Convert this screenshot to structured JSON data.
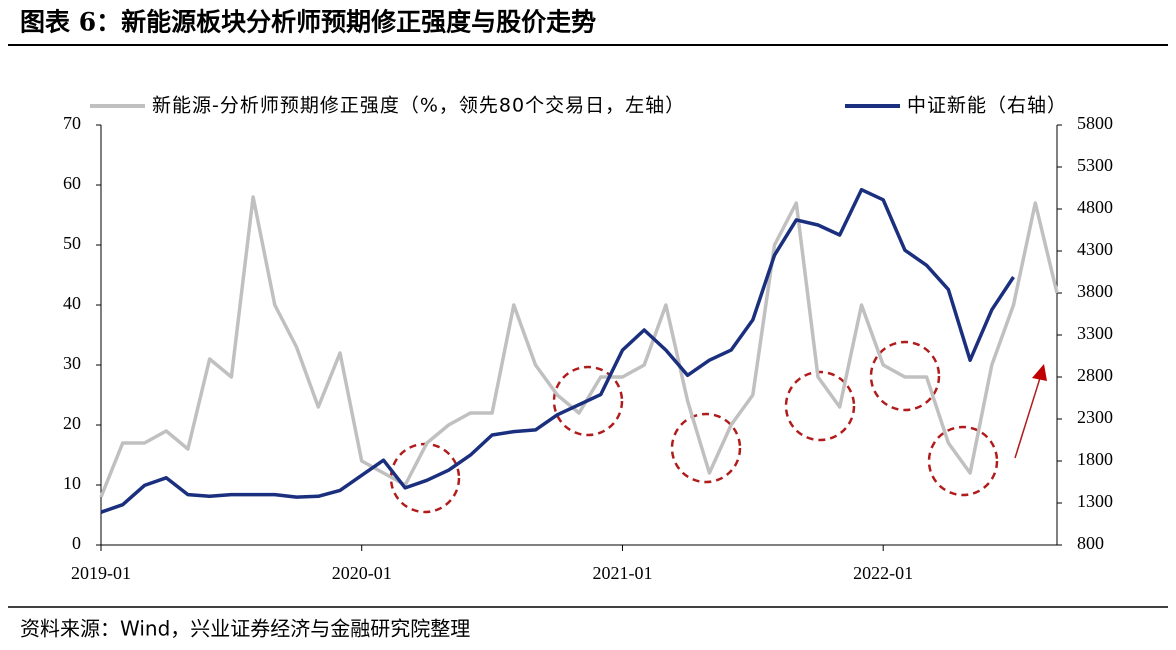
{
  "chart_data": {
    "type": "line",
    "title": "图表 6：新能源板块分析师预期修正强度与股价走势",
    "source": "资料来源：Wind，兴业证券经济与金融研究院整理",
    "x": [
      "2019-01",
      "2019-02",
      "2019-03",
      "2019-04",
      "2019-05",
      "2019-06",
      "2019-07",
      "2019-08",
      "2019-09",
      "2019-10",
      "2019-11",
      "2019-12",
      "2020-01",
      "2020-02",
      "2020-03",
      "2020-04",
      "2020-05",
      "2020-06",
      "2020-07",
      "2020-08",
      "2020-09",
      "2020-10",
      "2020-11",
      "2020-12",
      "2021-01",
      "2021-02",
      "2021-03",
      "2021-04",
      "2021-05",
      "2021-06",
      "2021-07",
      "2021-08",
      "2021-09",
      "2021-10",
      "2021-11",
      "2021-12",
      "2022-01",
      "2022-02",
      "2022-03",
      "2022-04",
      "2022-05",
      "2022-06",
      "2022-07",
      "2022-08",
      "2022-09"
    ],
    "xlim": [
      "2019-01",
      "2022-09"
    ],
    "xticks": [
      "2019-01",
      "2020-01",
      "2021-01",
      "2022-01"
    ],
    "ylim": [
      0,
      70
    ],
    "yticks": [
      0,
      10,
      20,
      30,
      40,
      50,
      60,
      70
    ],
    "y2lim": [
      800,
      5800
    ],
    "y2ticks": [
      800,
      1300,
      1800,
      2300,
      2800,
      3300,
      3800,
      4300,
      4800,
      5300,
      5800
    ],
    "series": [
      {
        "name": "新能源-分析师预期修正强度（%，领先80个交易日，左轴）",
        "color": "#c0c0c0",
        "values": [
          8,
          17,
          17,
          19,
          16,
          31,
          28,
          58,
          40,
          33,
          23,
          32,
          14,
          12,
          10,
          17,
          20,
          22,
          22,
          40,
          30,
          25,
          22,
          28,
          28,
          30,
          40,
          24,
          12,
          20,
          25,
          50,
          57,
          28,
          23,
          40,
          30,
          28,
          28,
          17,
          12,
          30,
          40,
          57,
          42
        ]
      },
      {
        "name": "中证新能（右轴）",
        "color": "#1b2f7f",
        "axis": "y2",
        "values": [
          1190,
          1280,
          1510,
          1600,
          1400,
          1380,
          1400,
          1400,
          1400,
          1370,
          1380,
          1450,
          1630,
          1810,
          1480,
          1570,
          1690,
          1870,
          2110,
          2150,
          2170,
          2350,
          2470,
          2590,
          3120,
          3360,
          3120,
          2820,
          3000,
          3120,
          3480,
          4250,
          4670,
          4610,
          4490,
          5030,
          4910,
          4310,
          4130,
          3840,
          3000,
          3600,
          3990,
          null,
          null
        ]
      }
    ]
  }
}
